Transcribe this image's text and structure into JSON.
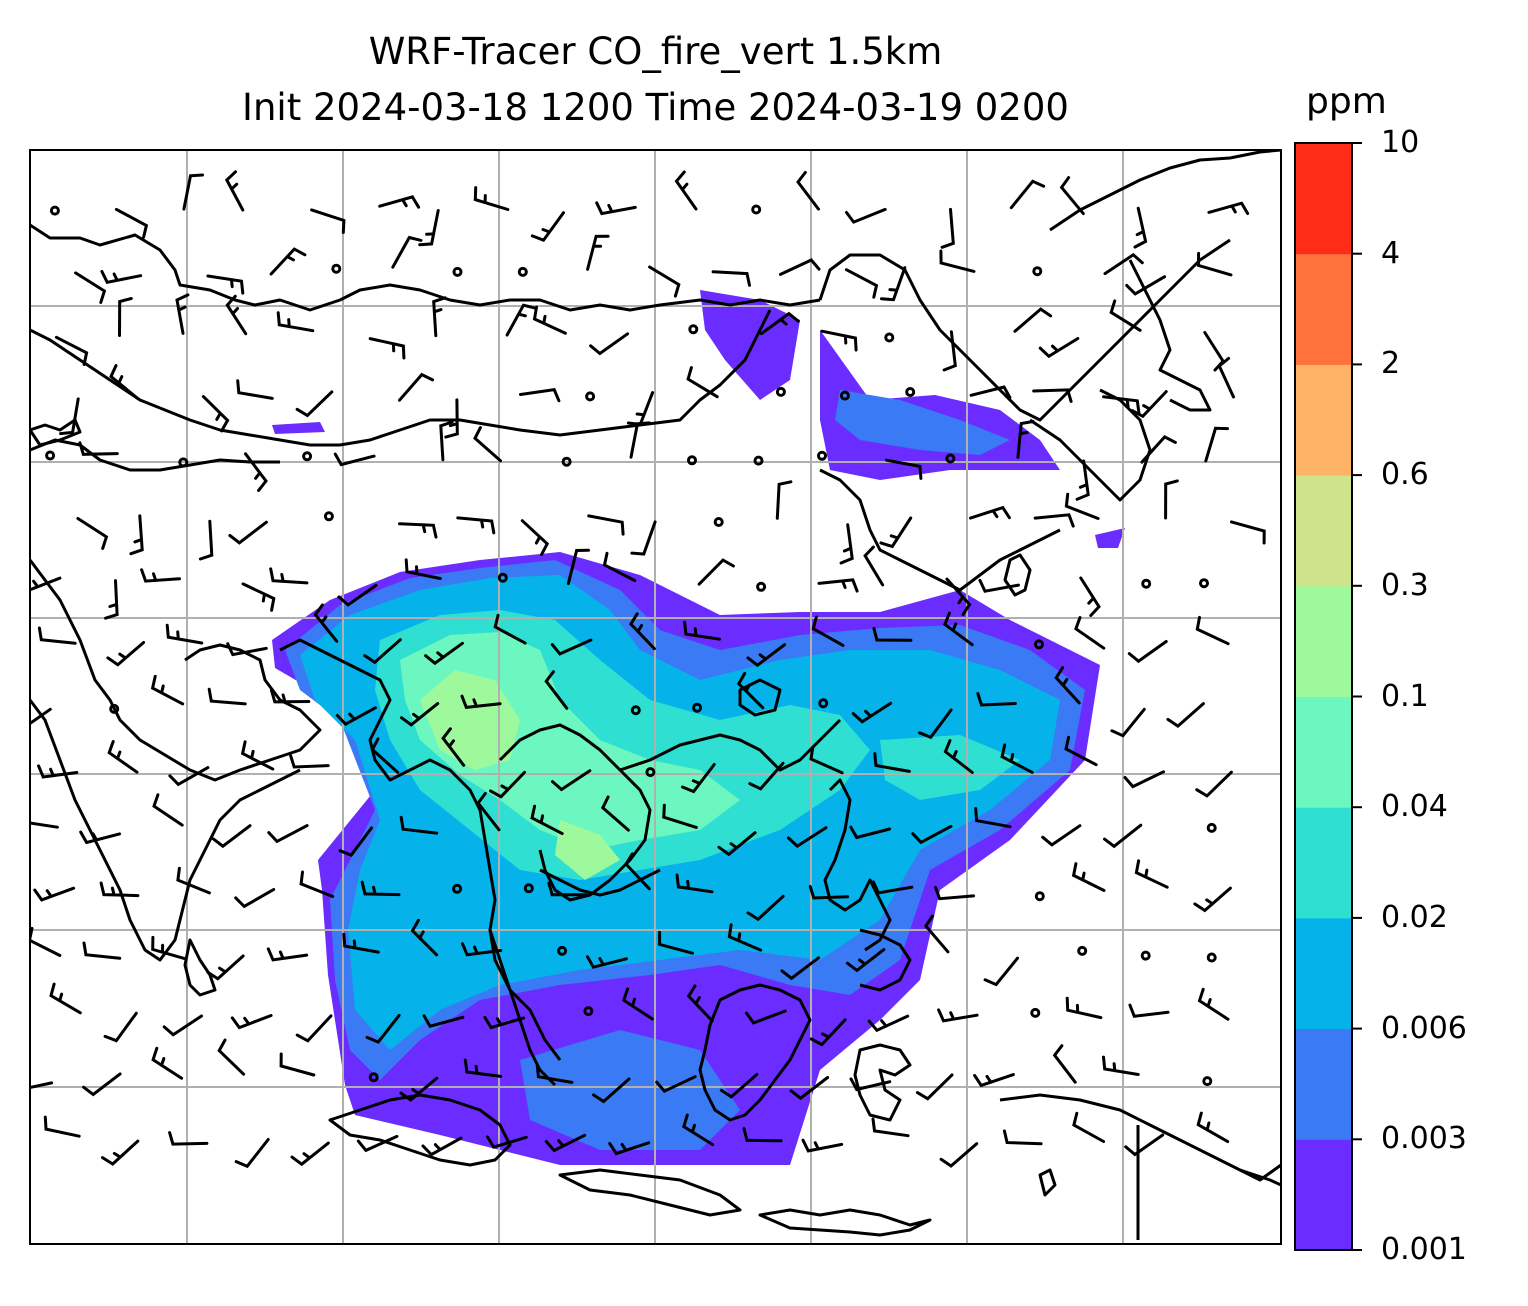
{
  "title": {
    "line1": "WRF-Tracer CO_fire_vert 1.5km",
    "line2": "Init 2024-03-18 1200 Time 2024-03-19 0200"
  },
  "colorbar": {
    "unit": "ppm",
    "ticks": [
      "10",
      "4",
      "2",
      "0.6",
      "0.3",
      "0.1",
      "0.04",
      "0.02",
      "0.006",
      "0.003",
      "0.001"
    ],
    "colors": [
      "#6a2cff",
      "#3a7af5",
      "#05b2ea",
      "#2fe0d2",
      "#6cf7c0",
      "#9ef99c",
      "#cfe38a",
      "#fdb266",
      "#ff723c",
      "#ff2d17"
    ]
  },
  "map": {
    "gridlines": true,
    "gridline_color": "#b0b0b0",
    "coastline_color": "#000000",
    "barb_color": "#000000"
  }
}
